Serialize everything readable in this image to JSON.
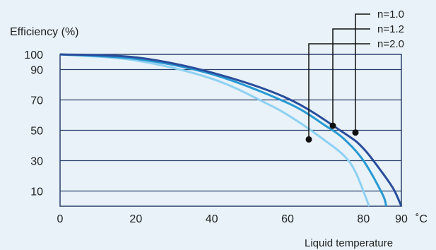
{
  "chart_data": {
    "type": "line",
    "ylabel": "Efficiency (%)",
    "xlabel": "Liquid temperature",
    "x_unit": "˚C",
    "xlim": [
      0,
      90
    ],
    "x_ticks": [
      0,
      20,
      40,
      60,
      80,
      90
    ],
    "y_ticks": [
      10,
      30,
      50,
      70,
      90,
      100
    ],
    "series": [
      {
        "name": "n=1.0",
        "color": "#2a4d9b",
        "x": [
          0,
          20,
          40,
          60,
          75,
          80,
          85,
          88,
          90
        ],
        "y": [
          100,
          98,
          88,
          71,
          48,
          38,
          22,
          11,
          0
        ],
        "marker": {
          "x": 80.7,
          "y": 48.5
        }
      },
      {
        "name": "n=1.2",
        "color": "#2899d2",
        "x": [
          0,
          20,
          40,
          60,
          70,
          75,
          80,
          85,
          86
        ],
        "y": [
          100,
          97,
          87,
          68,
          53,
          44,
          30,
          8,
          0
        ],
        "marker": {
          "x": 73.5,
          "y": 53.0
        }
      },
      {
        "name": "n=2.0",
        "color": "#8fd1f2",
        "x": [
          0,
          20,
          40,
          55,
          62,
          70,
          75,
          78,
          81.5
        ],
        "y": [
          100,
          96,
          84,
          67,
          57,
          43,
          33,
          22,
          0
        ],
        "marker": {
          "x": 66.3,
          "y": 44.0
        }
      }
    ],
    "legend_placement": "top-right",
    "grid": "horizontal"
  }
}
